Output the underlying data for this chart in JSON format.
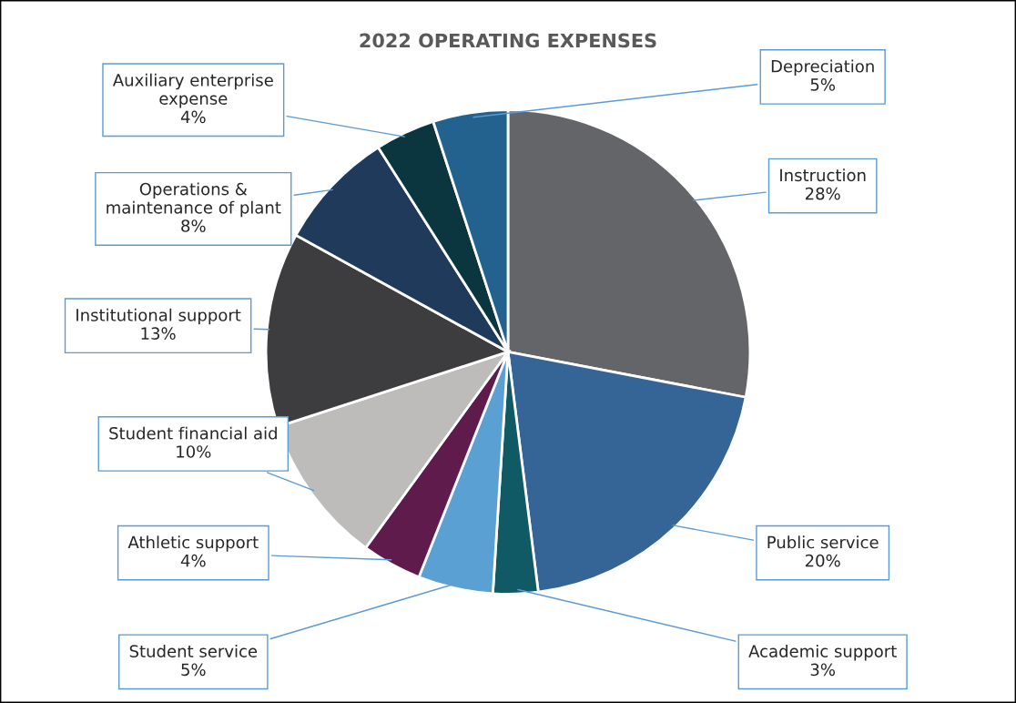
{
  "chart_data": {
    "type": "pie",
    "title": "2022 OPERATING EXPENSES",
    "categories": [
      "Instruction",
      "Public service",
      "Academic support",
      "Student service",
      "Athletic support",
      "Student financial aid",
      "Institutional support",
      "Operations & maintenance of plant",
      "Auxiliary enterprise expense",
      "Depreciation"
    ],
    "values": [
      28,
      20,
      3,
      5,
      4,
      10,
      13,
      8,
      4,
      5
    ],
    "colors": [
      "#646569",
      "#356496",
      "#0f5a64",
      "#5aa0d2",
      "#5f1b4b",
      "#bdbcbb",
      "#3d3d3f",
      "#203a5c",
      "#0b363f",
      "#23618f"
    ],
    "value_labels": [
      "28%",
      "20%",
      "3%",
      "5%",
      "4%",
      "10%",
      "13%",
      "8%",
      "4%",
      "5%"
    ]
  }
}
